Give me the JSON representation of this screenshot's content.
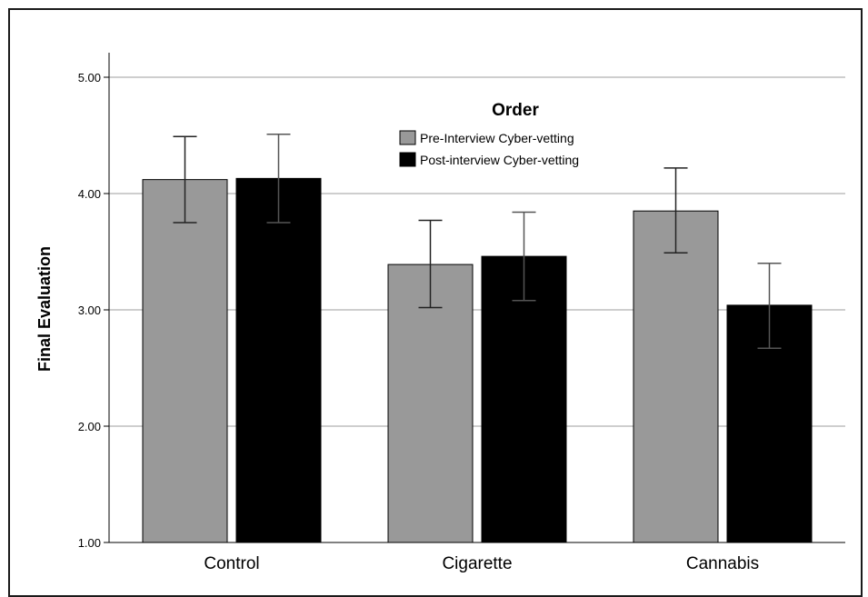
{
  "chart_data": {
    "type": "bar",
    "title": "",
    "xlabel": "",
    "ylabel": "Final Evaluation",
    "ylim": [
      1.0,
      5.0
    ],
    "yticks": [
      "1.00",
      "2.00",
      "3.00",
      "4.00",
      "5.00"
    ],
    "categories": [
      "Control",
      "Cigarette",
      "Cannabis"
    ],
    "legend_title": "Order",
    "legend_position": "top-center",
    "grid": true,
    "series": [
      {
        "name": "Pre-Interview Cyber-vetting",
        "color": "#999999",
        "values": [
          4.12,
          3.39,
          3.85
        ],
        "error_low": [
          3.75,
          3.02,
          3.49
        ],
        "error_high": [
          4.49,
          3.77,
          4.22
        ]
      },
      {
        "name": "Post-interview Cyber-vetting",
        "color": "#000000",
        "values": [
          4.13,
          3.46,
          3.04
        ],
        "error_low": [
          3.75,
          3.08,
          2.67
        ],
        "error_high": [
          4.51,
          3.84,
          3.4
        ]
      }
    ]
  }
}
